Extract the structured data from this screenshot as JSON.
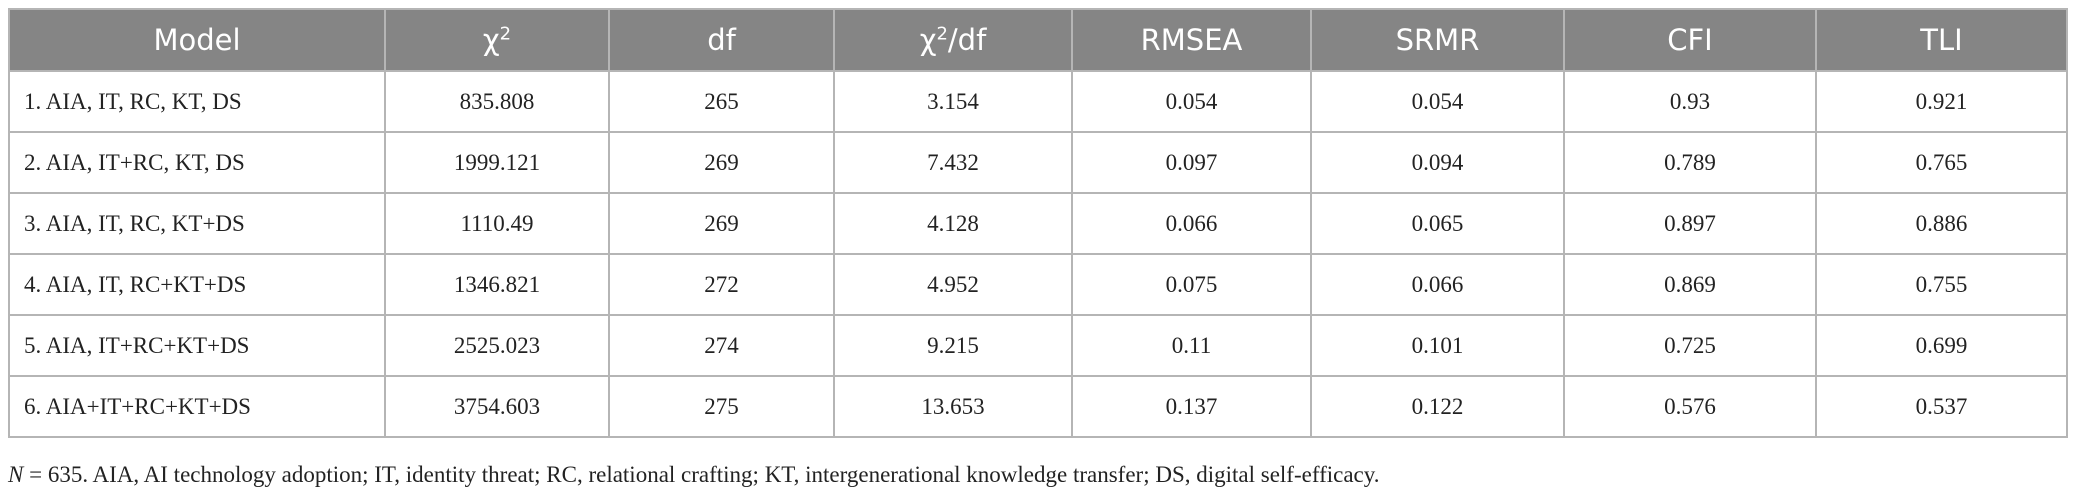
{
  "table": {
    "header": [
      "Model",
      [
        "χ",
        "2"
      ],
      "df",
      [
        "χ",
        "2",
        "/df"
      ],
      "RMSEA",
      "SRMR",
      "CFI",
      "TLI"
    ],
    "rows": [
      [
        "1. AIA, IT, RC, KT, DS",
        "835.808",
        "265",
        "3.154",
        "0.054",
        "0.054",
        "0.93",
        "0.921"
      ],
      [
        "2. AIA, IT+RC, KT, DS",
        "1999.121",
        "269",
        "7.432",
        "0.097",
        "0.094",
        "0.789",
        "0.765"
      ],
      [
        "3. AIA, IT, RC, KT+DS",
        "1110.49",
        "269",
        "4.128",
        "0.066",
        "0.065",
        "0.897",
        "0.886"
      ],
      [
        "4. AIA, IT, RC+KT+DS",
        "1346.821",
        "272",
        "4.952",
        "0.075",
        "0.066",
        "0.869",
        "0.755"
      ],
      [
        "5. AIA, IT+RC+KT+DS",
        "2525.023",
        "274",
        "9.215",
        "0.11",
        "0.101",
        "0.725",
        "0.699"
      ],
      [
        "6. AIA+IT+RC+KT+DS",
        "3754.603",
        "275",
        "13.653",
        "0.137",
        "0.122",
        "0.576",
        "0.537"
      ]
    ]
  },
  "footnote": [
    "N",
    " = 635. AIA, AI technology adoption; IT, identity threat; RC, relational crafting; KT, intergenerational knowledge transfer; DS, digital self-efficacy."
  ]
}
